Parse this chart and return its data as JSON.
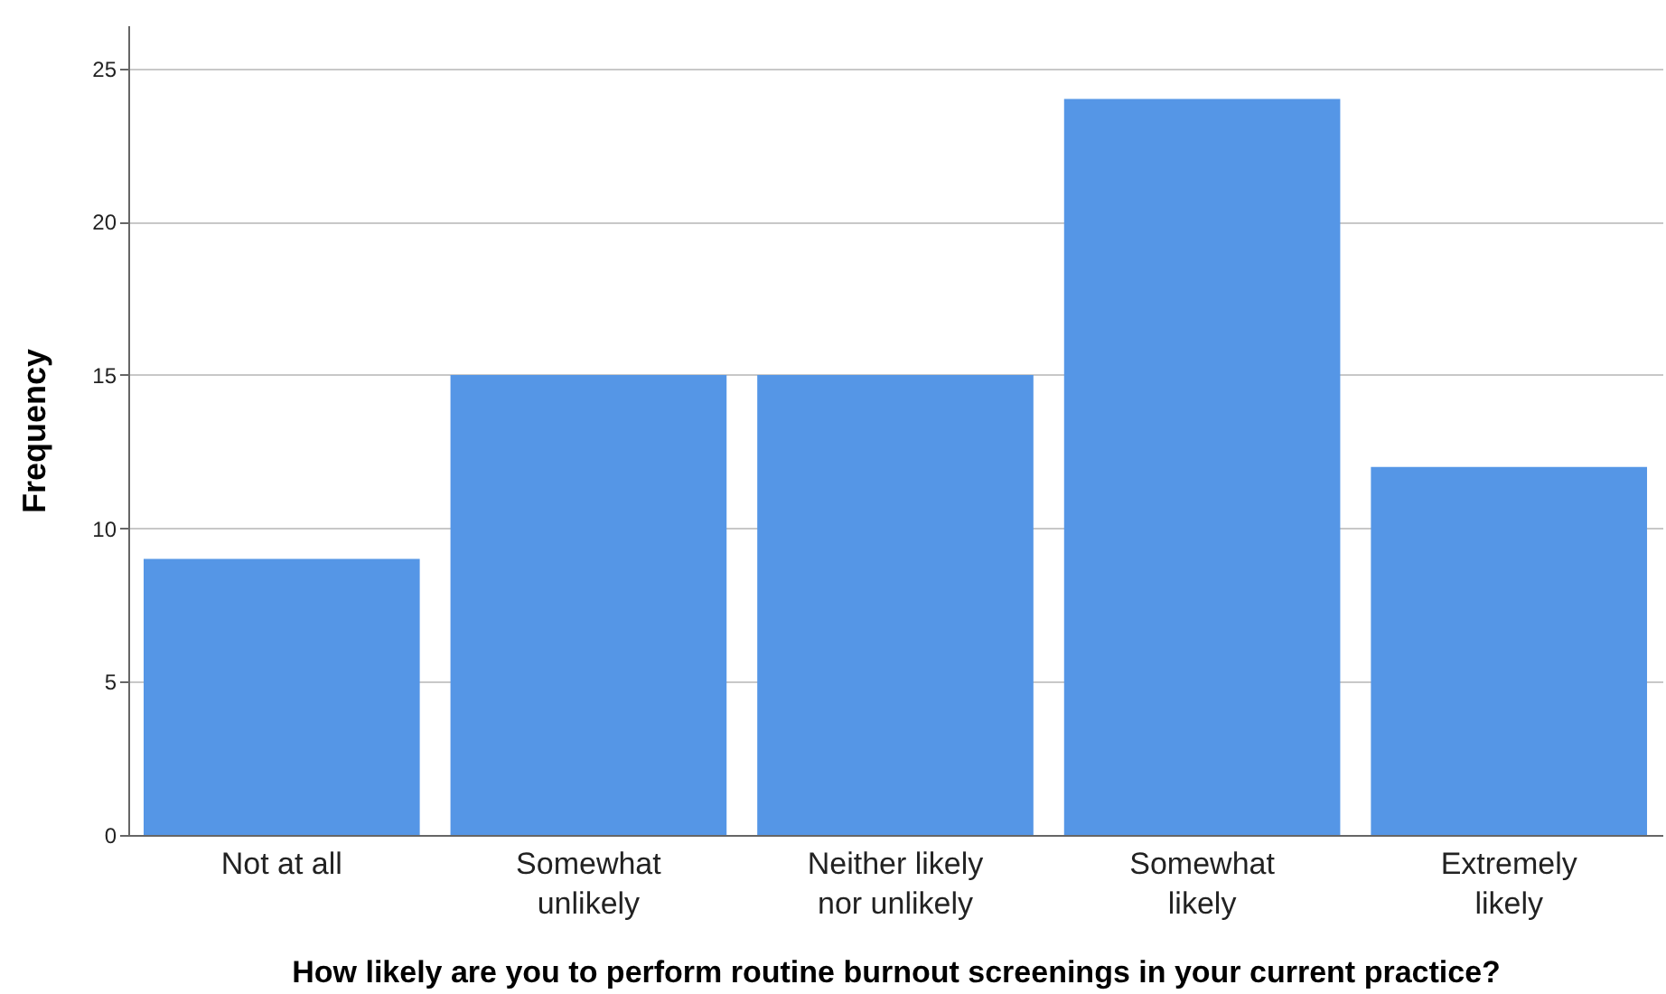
{
  "chart_data": {
    "type": "bar",
    "xlabel": "How likely are you to perform routine burnout screenings in your current practice?",
    "ylabel": "Frequency",
    "categories": [
      "Not at all",
      "Somewhat unlikely",
      "Neither likely nor unlikely",
      "Somewhat likely",
      "Extremely likely"
    ],
    "values": [
      9,
      15,
      15,
      24,
      12
    ],
    "color": "#5596e6",
    "ylim": [
      0,
      26.4
    ],
    "yticks": [
      0,
      5,
      10,
      15,
      20,
      25
    ],
    "grid": "y"
  }
}
